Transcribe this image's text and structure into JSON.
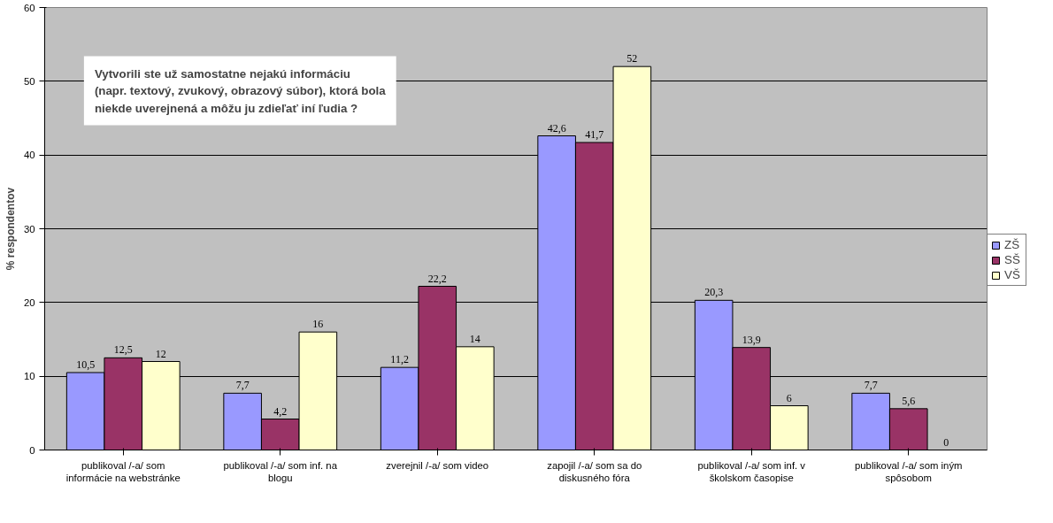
{
  "chart_data": {
    "type": "bar",
    "title": "Vytvorili ste už samostatne nejakú informáciu\n(napr. textový, zvukový, obrazový súbor), ktorá bola\nniekde uverejnená a môžu ju zdieľať iní ľudia ?",
    "ylabel": "% respondentov",
    "categories": [
      "publikoval /-a/ som\ninformácie na webstránke",
      "publikoval /-a/ som inf. na\nblogu",
      "zverejnil /-a/ som video",
      "zapojil /-a/ som sa do\ndiskusného fóra",
      "publikoval /-a/ som inf. v\nškolskom časopise",
      "publikoval /-a/ som iným\nspôsobom"
    ],
    "series": [
      {
        "name": "ZŠ",
        "color": "#9999ff",
        "values": [
          10.5,
          7.7,
          11.2,
          42.6,
          20.3,
          7.7
        ],
        "value_labels": [
          "10,5",
          "7,7",
          "11,2",
          "42,6",
          "20,3",
          "7,7"
        ]
      },
      {
        "name": "SŠ",
        "color": "#993366",
        "values": [
          12.5,
          4.2,
          22.2,
          41.7,
          13.9,
          5.6
        ],
        "value_labels": [
          "12,5",
          "4,2",
          "22,2",
          "41,7",
          "13,9",
          "5,6"
        ]
      },
      {
        "name": "VŠ",
        "color": "#ffffcc",
        "values": [
          12,
          16,
          14,
          52,
          6,
          0
        ],
        "value_labels": [
          "12",
          "16",
          "14",
          "52",
          "6",
          "0"
        ]
      }
    ],
    "ylim": [
      0,
      60
    ],
    "yticks": [
      0,
      10,
      20,
      30,
      40,
      50,
      60
    ],
    "grid": "y",
    "legend": "right"
  }
}
